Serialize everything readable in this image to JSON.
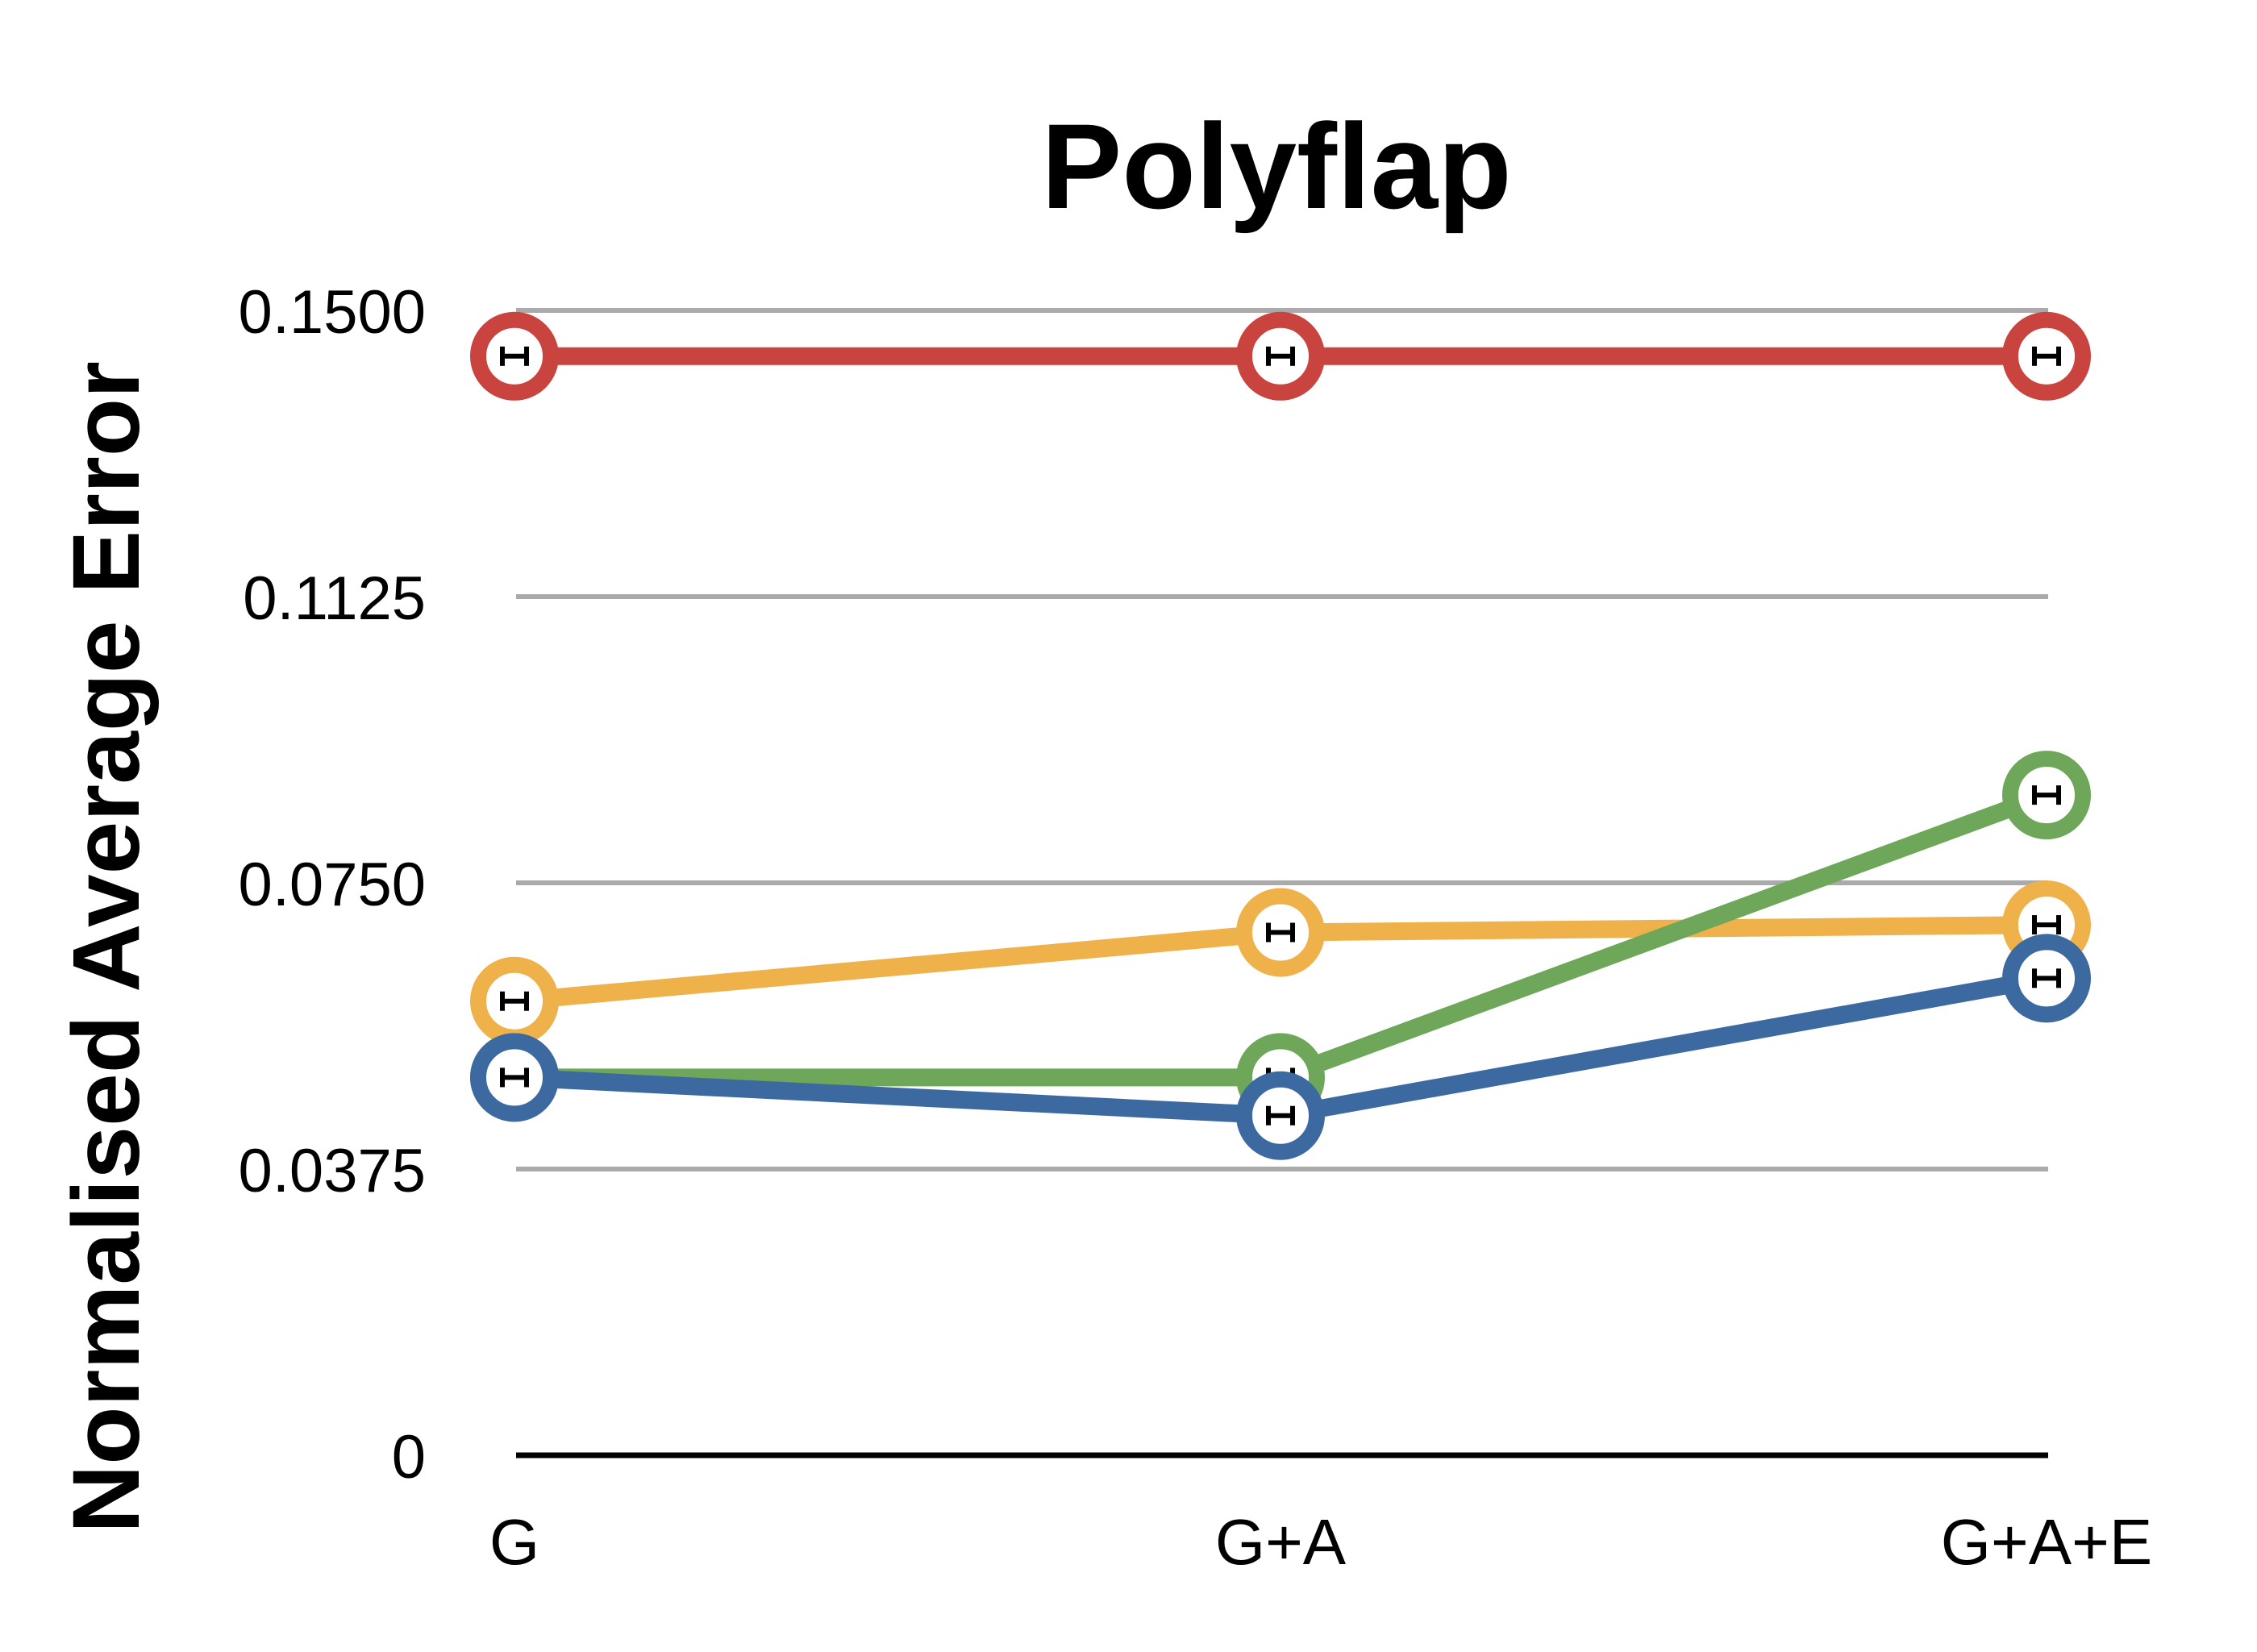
{
  "chart_data": {
    "type": "line",
    "title": "Polyflap",
    "xlabel": "",
    "ylabel": "Normalised Average Error",
    "categories": [
      "G",
      "G+A",
      "G+A+E"
    ],
    "ylim": [
      0,
      0.15
    ],
    "yticks": [
      "0",
      "0.0375",
      "0.0750",
      "0.1125",
      "0.1500"
    ],
    "grid": true,
    "error_bars": true,
    "series": [
      {
        "color": "#c9433f",
        "values": [
          0.144,
          0.144,
          0.144
        ]
      },
      {
        "color": "#efb24a",
        "values": [
          0.0595,
          0.0685,
          0.0695
        ]
      },
      {
        "color": "#6ea759",
        "values": [
          0.0495,
          0.0495,
          0.0865
        ]
      },
      {
        "color": "#3c6aa0",
        "values": [
          0.0495,
          0.0445,
          0.0625
        ]
      }
    ]
  }
}
